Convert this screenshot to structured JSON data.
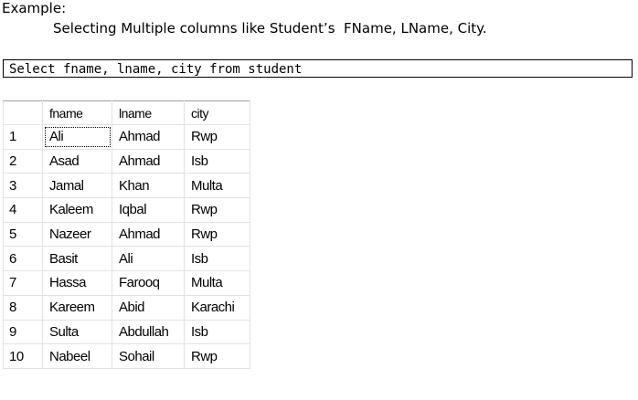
{
  "heading": "Example:",
  "subheading": "Selecting Multiple columns like Student’s  FName, LName, City.",
  "query": "Select fname, lname, city from student",
  "table": {
    "columns": [
      "fname",
      "lname",
      "city"
    ],
    "rows": [
      [
        1,
        "Ali",
        "Ahmad",
        "Rwp"
      ],
      [
        2,
        "Asad",
        "Ahmad",
        "Isb"
      ],
      [
        3,
        "Jamal",
        "Khan",
        "Multa"
      ],
      [
        4,
        "Kaleem",
        "Iqbal",
        "Rwp"
      ],
      [
        5,
        "Nazeer",
        "Ahmad",
        "Rwp"
      ],
      [
        6,
        "Basit",
        "Ali",
        "Isb"
      ],
      [
        7,
        "Hassa",
        "Farooq",
        "Multa"
      ],
      [
        8,
        "Kareem",
        "Abid",
        "Karachi"
      ],
      [
        9,
        "Sulta",
        "Abdullah",
        "Isb"
      ],
      [
        10,
        "Nabeel",
        "Sohail",
        "Rwp"
      ]
    ]
  }
}
